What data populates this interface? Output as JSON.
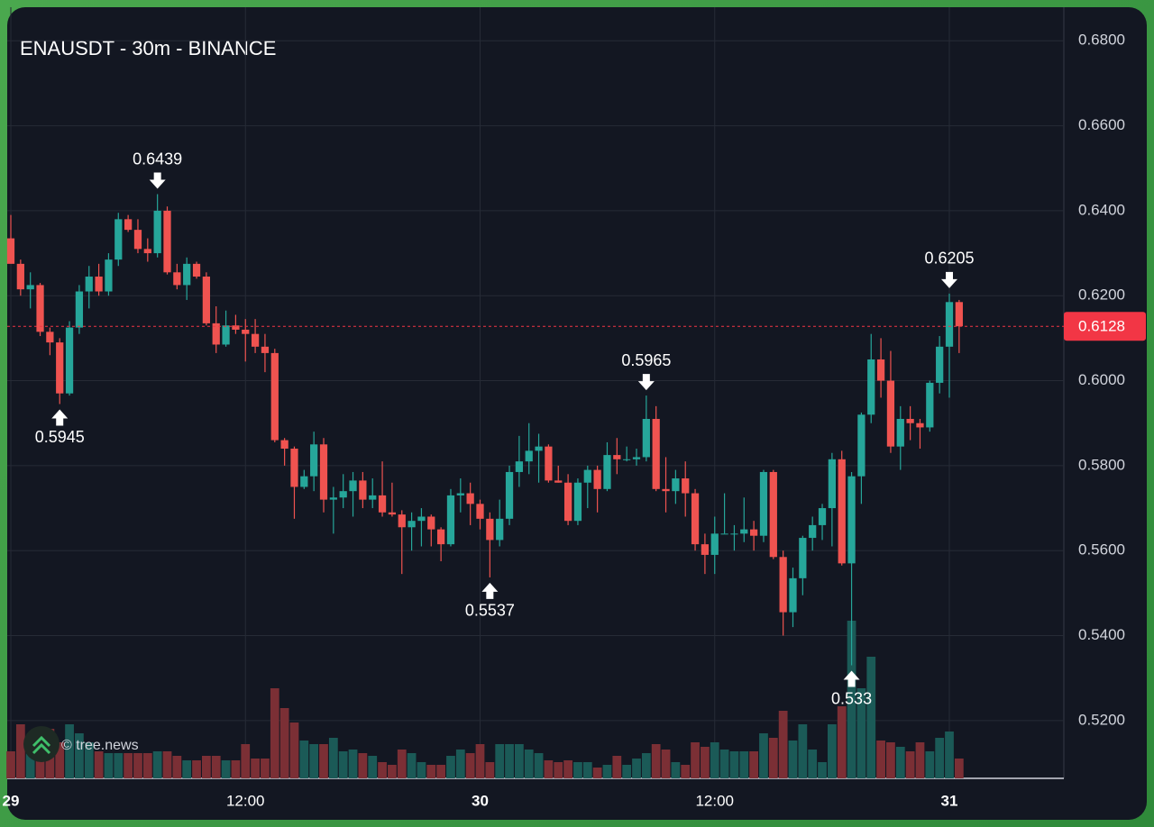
{
  "chart_data": {
    "type": "candlestick",
    "title": "ENAUSDT - 30m - BINANCE",
    "watermark": "© tree.news",
    "categories": [
      "29",
      null,
      null,
      null,
      null,
      null,
      null,
      null,
      null,
      null,
      null,
      null,
      null,
      null,
      null,
      null,
      null,
      null,
      null,
      null,
      null,
      null,
      null,
      null,
      "12:00",
      null,
      null,
      null,
      null,
      null,
      null,
      null,
      null,
      null,
      null,
      null,
      null,
      null,
      null,
      null,
      null,
      null,
      null,
      null,
      null,
      null,
      null,
      null,
      "30",
      null,
      null,
      null,
      null,
      null,
      null,
      null,
      null,
      null,
      null,
      null,
      null,
      null,
      null,
      null,
      null,
      null,
      null,
      null,
      null,
      null,
      null,
      null,
      "12:00",
      null,
      null,
      null,
      null,
      null,
      null,
      null,
      null,
      null,
      null,
      null,
      null,
      null,
      null,
      null,
      null,
      null,
      null,
      null,
      null,
      null,
      null,
      null,
      "31",
      null
    ],
    "open": [
      0.6335,
      0.6275,
      0.6215,
      0.6225,
      0.6115,
      0.609,
      0.597,
      0.6125,
      0.621,
      0.6245,
      0.621,
      0.6285,
      0.638,
      0.6355,
      0.631,
      0.63,
      0.64,
      0.6255,
      0.6225,
      0.6275,
      0.6245,
      0.6135,
      0.6085,
      0.613,
      0.612,
      0.611,
      0.608,
      0.6065,
      0.586,
      0.584,
      0.575,
      0.5775,
      0.585,
      0.572,
      0.5725,
      0.574,
      0.5765,
      0.572,
      0.573,
      0.569,
      0.5685,
      0.5655,
      0.567,
      0.568,
      0.565,
      0.5615,
      0.573,
      0.5735,
      0.571,
      0.5675,
      0.5625,
      0.5675,
      0.5785,
      0.581,
      0.5835,
      0.5845,
      0.5765,
      0.576,
      0.567,
      0.576,
      0.579,
      0.5745,
      0.5825,
      0.5815,
      0.5815,
      0.582,
      0.591,
      0.5745,
      0.574,
      0.577,
      0.5735,
      0.5615,
      0.559,
      0.564,
      0.564,
      0.564,
      0.565,
      0.5635,
      0.5785,
      0.5585,
      0.5455,
      0.5535,
      0.563,
      0.566,
      0.57,
      0.5815,
      0.557,
      0.5775,
      0.592,
      0.605,
      0.6,
      0.5845,
      0.591,
      0.59,
      0.589,
      0.5995,
      0.608,
      0.6185
    ],
    "high": [
      0.639,
      0.6285,
      0.6255,
      0.623,
      0.6125,
      0.61,
      0.614,
      0.6225,
      0.627,
      0.6275,
      0.63,
      0.6395,
      0.639,
      0.638,
      0.6335,
      0.6439,
      0.641,
      0.6275,
      0.629,
      0.628,
      0.6255,
      0.6175,
      0.6165,
      0.6155,
      0.6145,
      0.6145,
      0.611,
      0.6075,
      0.5865,
      0.5845,
      0.579,
      0.588,
      0.5865,
      0.575,
      0.578,
      0.5785,
      0.5785,
      0.577,
      0.581,
      0.576,
      0.5695,
      0.569,
      0.57,
      0.5685,
      0.5655,
      0.5745,
      0.577,
      0.576,
      0.572,
      0.569,
      0.572,
      0.58,
      0.587,
      0.59,
      0.5875,
      0.585,
      0.58,
      0.578,
      0.577,
      0.58,
      0.58,
      0.5855,
      0.5865,
      0.5845,
      0.584,
      0.5965,
      0.594,
      0.582,
      0.579,
      0.581,
      0.5745,
      0.564,
      0.568,
      0.5735,
      0.566,
      0.5725,
      0.567,
      0.579,
      0.579,
      0.56,
      0.556,
      0.5635,
      0.568,
      0.571,
      0.583,
      0.5835,
      0.5785,
      0.5925,
      0.611,
      0.61,
      0.607,
      0.594,
      0.594,
      0.591,
      0.6,
      0.6105,
      0.6205,
      0.619
    ],
    "low": [
      0.628,
      0.62,
      0.617,
      0.6105,
      0.606,
      0.5945,
      0.5965,
      0.611,
      0.617,
      0.62,
      0.62,
      0.627,
      0.635,
      0.63,
      0.628,
      0.629,
      0.625,
      0.6215,
      0.619,
      0.624,
      0.613,
      0.6065,
      0.608,
      0.611,
      0.6045,
      0.6065,
      0.602,
      0.5855,
      0.58,
      0.5675,
      0.5745,
      0.574,
      0.569,
      0.564,
      0.57,
      0.568,
      0.57,
      0.57,
      0.568,
      0.568,
      0.5545,
      0.56,
      0.561,
      0.561,
      0.5575,
      0.561,
      0.569,
      0.566,
      0.565,
      0.5537,
      0.561,
      0.566,
      0.575,
      0.578,
      0.576,
      0.576,
      0.576,
      0.566,
      0.566,
      0.57,
      0.569,
      0.574,
      0.578,
      0.581,
      0.58,
      0.581,
      0.574,
      0.569,
      0.571,
      0.568,
      0.56,
      0.5545,
      0.5545,
      0.564,
      0.56,
      0.562,
      0.56,
      0.562,
      0.558,
      0.54,
      0.542,
      0.5495,
      0.56,
      0.5625,
      0.561,
      0.5565,
      0.533,
      0.571,
      0.59,
      0.596,
      0.583,
      0.579,
      0.586,
      0.584,
      0.588,
      0.597,
      0.596,
      0.6065
    ],
    "close": [
      0.6275,
      0.6215,
      0.6225,
      0.6115,
      0.609,
      0.597,
      0.6125,
      0.621,
      0.6245,
      0.621,
      0.6285,
      0.638,
      0.6355,
      0.631,
      0.63,
      0.64,
      0.6255,
      0.6225,
      0.6275,
      0.6245,
      0.6135,
      0.6085,
      0.613,
      0.612,
      0.611,
      0.608,
      0.6065,
      0.586,
      0.584,
      0.575,
      0.5775,
      0.585,
      0.572,
      0.5725,
      0.574,
      0.5765,
      0.572,
      0.573,
      0.569,
      0.5685,
      0.5655,
      0.567,
      0.568,
      0.565,
      0.5615,
      0.573,
      0.5735,
      0.571,
      0.5675,
      0.5625,
      0.5675,
      0.5785,
      0.581,
      0.5835,
      0.5845,
      0.5765,
      0.576,
      0.567,
      0.576,
      0.579,
      0.5745,
      0.5825,
      0.5815,
      0.5815,
      0.582,
      0.591,
      0.5745,
      0.574,
      0.577,
      0.5735,
      0.5615,
      0.559,
      0.564,
      0.564,
      0.564,
      0.565,
      0.5635,
      0.5785,
      0.5585,
      0.5455,
      0.5535,
      0.563,
      0.566,
      0.57,
      0.5815,
      0.557,
      0.5775,
      0.592,
      0.605,
      0.6,
      0.5845,
      0.591,
      0.59,
      0.589,
      0.5995,
      0.608,
      0.6185,
      0.6128
    ],
    "volume": [
      30,
      60,
      30,
      40,
      55,
      40,
      60,
      50,
      40,
      30,
      28,
      28,
      28,
      28,
      28,
      30,
      30,
      25,
      20,
      20,
      25,
      25,
      20,
      20,
      38,
      22,
      22,
      100,
      78,
      62,
      42,
      38,
      38,
      45,
      30,
      32,
      28,
      25,
      18,
      15,
      32,
      28,
      18,
      15,
      15,
      25,
      32,
      28,
      38,
      18,
      38,
      38,
      38,
      32,
      28,
      20,
      18,
      20,
      18,
      18,
      12,
      15,
      25,
      15,
      22,
      28,
      38,
      32,
      18,
      15,
      40,
      35,
      40,
      32,
      30,
      30,
      30,
      50,
      45,
      75,
      42,
      60,
      32,
      18,
      60,
      80,
      175,
      100,
      135,
      42,
      40,
      35,
      30,
      40,
      30,
      45,
      52,
      22
    ],
    "up_color": "#26a69a",
    "down_color": "#ef5350",
    "volume_up_color": "#1b5a57",
    "volume_down_color": "#7b2f35",
    "ylim": [
      0.5064,
      0.6879
    ],
    "yticks": [
      {
        "value": 0.52,
        "label": "0.5200"
      },
      {
        "value": 0.54,
        "label": "0.5400"
      },
      {
        "value": 0.56,
        "label": "0.5600"
      },
      {
        "value": 0.58,
        "label": "0.5800"
      },
      {
        "value": 0.6,
        "label": "0.6000"
      },
      {
        "value": 0.62,
        "label": "0.6200"
      },
      {
        "value": 0.64,
        "label": "0.6400"
      },
      {
        "value": 0.66,
        "label": "0.6600"
      },
      {
        "value": 0.68,
        "label": "0.6800"
      }
    ],
    "grid": true,
    "high_marks": [
      0.6439,
      0.5965,
      0.6205
    ],
    "low_marks": [
      0.5945,
      0.5537,
      0.533
    ],
    "last_price": 0.6128,
    "last_price_color": "#f23645"
  }
}
